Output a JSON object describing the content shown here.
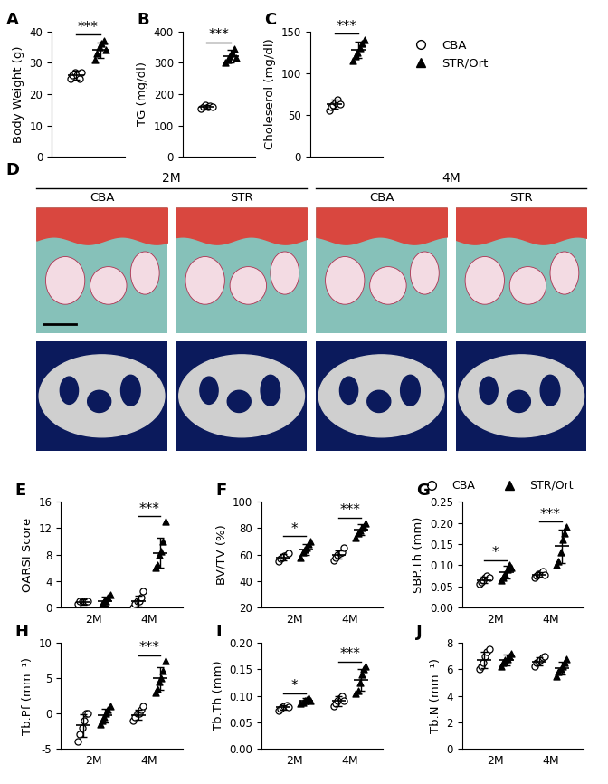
{
  "chart_data": [
    {
      "type": "scatter",
      "title": "A",
      "y_label": "Body Weight (g)",
      "categories": [
        null
      ],
      "ylim": [
        0,
        40
      ],
      "yticks": [
        0,
        10,
        20,
        30,
        40
      ],
      "series": [
        {
          "name": "CBA",
          "color": "black",
          "marker": "open_circle",
          "values": [
            [
              25,
              26,
              27,
              26,
              25,
              27
            ]
          ],
          "mean": [
            26
          ],
          "sd": [
            1.5
          ]
        },
        {
          "name": "STR/Ort",
          "color": "black",
          "marker": "triangle",
          "values": [
            [
              31,
              33,
              35,
              36,
              37,
              34
            ]
          ],
          "mean": [
            34
          ],
          "sd": [
            2.5
          ]
        }
      ],
      "annotations": [
        {
          "category": 0,
          "text": "***"
        }
      ]
    },
    {
      "type": "scatter",
      "title": "B",
      "y_label": "TG (mg/dl)",
      "categories": [
        null
      ],
      "ylim": [
        0,
        400
      ],
      "yticks": [
        0,
        100,
        200,
        300,
        400
      ],
      "series": [
        {
          "name": "CBA",
          "color": "black",
          "marker": "open_circle",
          "values": [
            [
              155,
              160,
              165,
              158,
              162,
              160
            ]
          ],
          "mean": [
            160
          ],
          "sd": [
            6
          ]
        },
        {
          "name": "STR/Ort",
          "color": "black",
          "marker": "triangle",
          "values": [
            [
              300,
              310,
              320,
              330,
              345,
              315
            ]
          ],
          "mean": [
            320
          ],
          "sd": [
            20
          ]
        }
      ],
      "annotations": [
        {
          "category": 0,
          "text": "***"
        }
      ]
    },
    {
      "type": "scatter",
      "title": "C",
      "y_label": "Choleserol (mg/dl)",
      "categories": [
        null
      ],
      "ylim": [
        0,
        150
      ],
      "yticks": [
        0,
        50,
        100,
        150
      ],
      "legend": "right",
      "series": [
        {
          "name": "CBA",
          "color": "black",
          "marker": "open_circle",
          "values": [
            [
              55,
              60,
              62,
              65,
              68,
              63
            ]
          ],
          "mean": [
            63
          ],
          "sd": [
            5
          ]
        },
        {
          "name": "STR/Ort",
          "color": "black",
          "marker": "triangle",
          "values": [
            [
              115,
              120,
              125,
              130,
              135,
              140
            ]
          ],
          "mean": [
            128
          ],
          "sd": [
            10
          ]
        }
      ],
      "annotations": [
        {
          "category": 0,
          "text": "***"
        }
      ]
    },
    {
      "type": "scatter",
      "title": "E",
      "y_label": "OARSI Score",
      "categories": [
        "2M",
        "4M"
      ],
      "ylim": [
        0,
        16
      ],
      "yticks": [
        0,
        4,
        8,
        12,
        16
      ],
      "series": [
        {
          "name": "CBA",
          "color": "black",
          "marker": "open_circle",
          "values": [
            [
              0.5,
              1,
              1,
              1,
              1,
              1
            ],
            [
              0,
              0.5,
              1,
              1,
              1.5,
              2.5
            ]
          ],
          "mean": [
            0.8,
            1
          ],
          "sd": [
            0.4,
            0.8
          ]
        },
        {
          "name": "STR/Ort",
          "color": "black",
          "marker": "triangle",
          "values": [
            [
              0,
              0.5,
              1,
              1,
              1.5,
              2
            ],
            [
              6,
              6.5,
              8,
              8.5,
              10,
              13
            ]
          ],
          "mean": [
            1,
            8.3
          ],
          "sd": [
            0.7,
            2.2
          ]
        }
      ],
      "annotations": [
        {
          "category": 1,
          "text": "***"
        }
      ]
    },
    {
      "type": "scatter",
      "title": "F",
      "y_label": "BV/TV (%)",
      "categories": [
        "2M",
        "4M"
      ],
      "ylim": [
        20,
        100
      ],
      "yticks": [
        20,
        40,
        60,
        80,
        100
      ],
      "series": [
        {
          "name": "CBA",
          "color": "black",
          "marker": "open_circle",
          "values": [
            [
              55,
              57,
              58,
              59,
              60,
              61
            ],
            [
              56,
              58,
              60,
              61,
              62,
              65
            ]
          ],
          "mean": [
            58,
            60
          ],
          "sd": [
            2.5,
            3
          ]
        },
        {
          "name": "STR/Ort",
          "color": "black",
          "marker": "triangle",
          "values": [
            [
              58,
              62,
              64,
              65,
              68,
              70
            ],
            [
              73,
              76,
              78,
              80,
              81,
              84
            ]
          ],
          "mean": [
            64,
            79
          ],
          "sd": [
            4,
            4
          ]
        }
      ],
      "annotations": [
        {
          "category": 0,
          "text": "*"
        },
        {
          "category": 1,
          "text": "***"
        }
      ]
    },
    {
      "type": "scatter",
      "title": "G",
      "y_label": "SBP.Th (mm)",
      "categories": [
        "2M",
        "4M"
      ],
      "ylim": [
        0,
        0.25
      ],
      "yticks": [
        {
          "value": 0,
          "label": "0.00"
        },
        {
          "value": 0.05,
          "label": "0.05"
        },
        {
          "value": 0.1,
          "label": "0.10"
        },
        {
          "value": 0.15,
          "label": "0.15"
        },
        {
          "value": 0.2,
          "label": "0.20"
        },
        {
          "value": 0.25,
          "label": "0.25"
        }
      ],
      "legend": "top right",
      "series": [
        {
          "name": "CBA",
          "color": "black",
          "marker": "open_circle",
          "values": [
            [
              0.055,
              0.06,
              0.065,
              0.07,
              0.075,
              0.07
            ],
            [
              0.07,
              0.075,
              0.08,
              0.08,
              0.085,
              0.078
            ]
          ],
          "mean": [
            0.065,
            0.078
          ],
          "sd": [
            0.007,
            0.005
          ]
        },
        {
          "name": "STR/Ort",
          "color": "black",
          "marker": "triangle",
          "values": [
            [
              0.065,
              0.07,
              0.08,
              0.09,
              0.1,
              0.095
            ],
            [
              0.1,
              0.11,
              0.13,
              0.16,
              0.175,
              0.19
            ]
          ],
          "mean": [
            0.083,
            0.145
          ],
          "sd": [
            0.015,
            0.04
          ]
        }
      ],
      "annotations": [
        {
          "category": 0,
          "text": "*"
        },
        {
          "category": 1,
          "text": "***"
        }
      ]
    },
    {
      "type": "scatter",
      "title": "H",
      "y_label": "Tb.Pf (mm⁻¹)",
      "categories": [
        "2M",
        "4M"
      ],
      "ylim": [
        -5,
        10
      ],
      "yticks": [
        -5,
        0,
        5,
        10
      ],
      "series": [
        {
          "name": "CBA",
          "color": "black",
          "marker": "open_circle",
          "values": [
            [
              -4,
              -3,
              -2,
              -1,
              0,
              0
            ],
            [
              -1,
              -0.5,
              0,
              0,
              0.5,
              1
            ]
          ],
          "mean": [
            -1.7,
            -0.2
          ],
          "sd": [
            1.6,
            0.7
          ]
        },
        {
          "name": "STR/Ort",
          "color": "black",
          "marker": "triangle",
          "values": [
            [
              -1.5,
              -1,
              -0.5,
              0,
              0.5,
              1
            ],
            [
              3,
              3.5,
              4.5,
              5,
              6,
              7.5
            ]
          ],
          "mean": [
            -0.3,
            5
          ],
          "sd": [
            1,
            1.6
          ]
        }
      ],
      "annotations": [
        {
          "category": 1,
          "text": "***"
        }
      ]
    },
    {
      "type": "scatter",
      "title": "I",
      "y_label": "Tb.Th (mm)",
      "categories": [
        "2M",
        "4M"
      ],
      "ylim": [
        0,
        0.2
      ],
      "yticks": [
        {
          "value": 0,
          "label": "0.00"
        },
        {
          "value": 0.05,
          "label": "0.05"
        },
        {
          "value": 0.1,
          "label": "0.10"
        },
        {
          "value": 0.15,
          "label": "0.15"
        },
        {
          "value": 0.2,
          "label": "0.20"
        }
      ],
      "series": [
        {
          "name": "CBA",
          "color": "black",
          "marker": "open_circle",
          "values": [
            [
              0.072,
              0.075,
              0.078,
              0.08,
              0.082,
              0.078
            ],
            [
              0.08,
              0.085,
              0.09,
              0.095,
              0.1,
              0.09
            ]
          ],
          "mean": [
            0.078,
            0.09
          ],
          "sd": [
            0.004,
            0.009
          ]
        },
        {
          "name": "STR/Ort",
          "color": "black",
          "marker": "triangle",
          "values": [
            [
              0.085,
              0.088,
              0.09,
              0.092,
              0.095,
              0.09
            ],
            [
              0.105,
              0.11,
              0.125,
              0.14,
              0.15,
              0.155
            ]
          ],
          "mean": [
            0.09,
            0.13
          ],
          "sd": [
            0.005,
            0.02
          ]
        }
      ],
      "annotations": [
        {
          "category": 0,
          "text": "*"
        },
        {
          "category": 1,
          "text": "***"
        }
      ]
    },
    {
      "type": "scatter",
      "title": "J",
      "y_label": "Tb.N (mm⁻¹)",
      "categories": [
        "2M",
        "4M"
      ],
      "ylim": [
        0,
        8
      ],
      "yticks": [
        0,
        2,
        4,
        6,
        8
      ],
      "series": [
        {
          "name": "CBA",
          "color": "black",
          "marker": "open_circle",
          "values": [
            [
              6,
              6.2,
              6.5,
              7,
              7.3,
              7.5
            ],
            [
              6.2,
              6.5,
              6.6,
              6.7,
              6.9,
              7
            ]
          ],
          "mean": [
            6.7,
            6.6
          ],
          "sd": [
            0.6,
            0.3
          ]
        },
        {
          "name": "STR/Ort",
          "color": "black",
          "marker": "triangle",
          "values": [
            [
              6.2,
              6.5,
              6.7,
              6.8,
              7,
              7.2
            ],
            [
              5.5,
              5.8,
              6,
              6.2,
              6.5,
              6.8
            ]
          ],
          "mean": [
            6.7,
            6.1
          ],
          "sd": [
            0.4,
            0.5
          ]
        }
      ],
      "annotations": []
    }
  ],
  "image_panel": {
    "title": "D",
    "groups": [
      {
        "label": "2M",
        "columns": [
          "CBA",
          "STR"
        ]
      },
      {
        "label": "4M",
        "columns": [
          "CBA",
          "STR"
        ]
      }
    ]
  }
}
